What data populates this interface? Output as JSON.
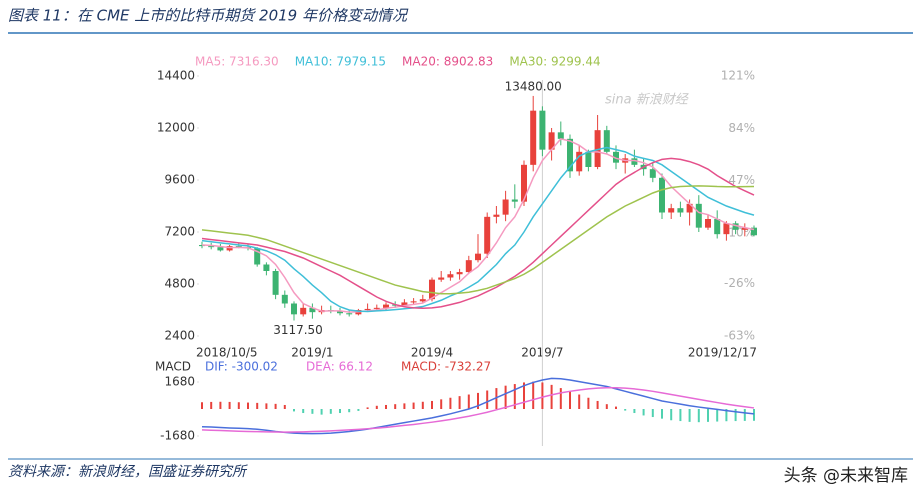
{
  "title": "图表 11：在 CME 上市的比特币期货 2019 年价格变动情况",
  "source": "资料来源：新浪财经，国盛证券研究所",
  "credit": "头条 @未来智库",
  "chart_data": [
    {
      "type": "candlestick",
      "watermark": "sina 新浪财经",
      "categories": [
        "2018/10/5",
        null,
        null,
        null,
        null,
        null,
        null,
        null,
        null,
        null,
        null,
        null,
        "2019/1",
        null,
        null,
        null,
        null,
        null,
        null,
        null,
        null,
        null,
        null,
        null,
        null,
        "2019/4",
        null,
        null,
        null,
        null,
        null,
        null,
        null,
        null,
        null,
        null,
        null,
        "2019/7",
        null,
        null,
        null,
        null,
        null,
        null,
        null,
        null,
        null,
        null,
        null,
        null,
        null,
        null,
        null,
        null,
        null,
        null,
        null,
        null,
        null,
        null,
        "2019/12/17"
      ],
      "open": [
        6600,
        6550,
        6500,
        6350,
        6550,
        6500,
        6450,
        5700,
        5400,
        4300,
        3900,
        3400,
        3700,
        3500,
        3600,
        3550,
        3450,
        3400,
        3600,
        3650,
        3700,
        3850,
        3800,
        3950,
        4000,
        4100,
        5000,
        5100,
        5250,
        5350,
        5900,
        6200,
        7900,
        8000,
        8700,
        8600,
        10300,
        12800,
        11000,
        11800,
        11500,
        10000,
        10900,
        10200,
        11900,
        10900,
        10400,
        10600,
        10300,
        10100,
        9700,
        8100,
        8300,
        8100,
        8500,
        7400,
        7800,
        7100,
        7600,
        7300,
        7400
      ],
      "high": [
        6750,
        6700,
        6650,
        6600,
        6700,
        6650,
        6500,
        5800,
        5500,
        4500,
        4000,
        3900,
        3900,
        3800,
        3800,
        3700,
        3600,
        3650,
        3900,
        3850,
        3950,
        4000,
        4100,
        4150,
        4300,
        5100,
        5400,
        5400,
        5500,
        6100,
        7100,
        8100,
        8400,
        9100,
        9400,
        10500,
        13480,
        13000,
        12000,
        12300,
        11700,
        11200,
        11000,
        12600,
        12100,
        11200,
        10800,
        11000,
        10600,
        10400,
        9900,
        8500,
        8600,
        8700,
        8900,
        8000,
        8200,
        7700,
        7700,
        7600,
        7500
      ],
      "low": [
        6450,
        6400,
        6300,
        6300,
        6450,
        6350,
        5600,
        5200,
        4100,
        3700,
        3117.5,
        3300,
        3200,
        3400,
        3450,
        3350,
        3300,
        3350,
        3550,
        3550,
        3600,
        3700,
        3750,
        3850,
        3900,
        4000,
        4900,
        4950,
        5000,
        5300,
        5800,
        6000,
        7600,
        7700,
        8300,
        8400,
        10000,
        10700,
        10500,
        11200,
        9700,
        9800,
        10000,
        10100,
        10800,
        10100,
        9900,
        10200,
        9800,
        9500,
        7800,
        7800,
        7900,
        7500,
        7200,
        7300,
        6900,
        6800,
        7100,
        7000,
        7000
      ],
      "close": [
        6550,
        6500,
        6350,
        6550,
        6500,
        6450,
        5700,
        5400,
        4300,
        3900,
        3400,
        3700,
        3500,
        3600,
        3550,
        3450,
        3400,
        3600,
        3650,
        3700,
        3850,
        3800,
        3950,
        4000,
        4100,
        5000,
        5100,
        5250,
        5350,
        5900,
        6200,
        7900,
        8000,
        8700,
        8600,
        10300,
        12800,
        11000,
        11800,
        11500,
        10000,
        10900,
        10200,
        11900,
        10900,
        10400,
        10600,
        10300,
        10100,
        9700,
        8100,
        8300,
        8100,
        8500,
        7400,
        7800,
        7100,
        7600,
        7300,
        7400,
        7050
      ],
      "up_color": "#e8413b",
      "down_color": "#3cb371",
      "high_label": "13480.00",
      "low_label": "3117.50",
      "series": [
        {
          "name": "MA5: 7316.30",
          "color": "#f59ac0",
          "values": [
            6600,
            6580,
            6530,
            6480,
            6490,
            6470,
            6300,
            6100,
            5700,
            5100,
            4400,
            3900,
            3700,
            3550,
            3560,
            3560,
            3500,
            3520,
            3560,
            3600,
            3680,
            3730,
            3800,
            3860,
            3920,
            4150,
            4400,
            4650,
            4900,
            5300,
            5600,
            6100,
            6700,
            7400,
            7900,
            8700,
            9700,
            10500,
            11000,
            11500,
            11400,
            11200,
            10900,
            10900,
            10800,
            10600,
            10500,
            10500,
            10400,
            10200,
            9800,
            9300,
            8900,
            8500,
            8100,
            8000,
            7800,
            7600,
            7500,
            7400,
            7316.3
          ]
        },
        {
          "name": "MA10: 7979.15",
          "color": "#3fbfd8",
          "values": [
            6800,
            6750,
            6700,
            6650,
            6600,
            6560,
            6450,
            6330,
            6150,
            5900,
            5500,
            5150,
            4750,
            4400,
            4000,
            3750,
            3600,
            3550,
            3530,
            3560,
            3580,
            3620,
            3660,
            3700,
            3760,
            3900,
            4050,
            4250,
            4420,
            4650,
            4900,
            5300,
            5700,
            6200,
            6600,
            7200,
            7900,
            8500,
            9100,
            9700,
            10200,
            10700,
            10900,
            11000,
            11100,
            11000,
            10900,
            10700,
            10600,
            10500,
            10300,
            10000,
            9700,
            9400,
            9100,
            8800,
            8600,
            8400,
            8250,
            8100,
            7979.15
          ]
        },
        {
          "name": "MA20: 8902.83",
          "color": "#e4508a",
          "values": [
            6900,
            6850,
            6800,
            6750,
            6700,
            6650,
            6600,
            6500,
            6400,
            6300,
            6150,
            6000,
            5800,
            5600,
            5400,
            5200,
            4950,
            4700,
            4450,
            4200,
            4000,
            3850,
            3750,
            3700,
            3680,
            3700,
            3750,
            3850,
            3950,
            4100,
            4250,
            4450,
            4650,
            4900,
            5150,
            5450,
            5800,
            6200,
            6600,
            7000,
            7400,
            7800,
            8200,
            8600,
            9000,
            9400,
            9700,
            9950,
            10200,
            10400,
            10550,
            10600,
            10550,
            10450,
            10300,
            10100,
            9800,
            9550,
            9300,
            9100,
            8902.83
          ]
        },
        {
          "name": "MA30: 9299.44",
          "color": "#9fc34e",
          "values": [
            7300,
            7250,
            7200,
            7150,
            7100,
            7050,
            6950,
            6850,
            6700,
            6550,
            6400,
            6250,
            6100,
            5950,
            5800,
            5650,
            5500,
            5350,
            5200,
            5050,
            4900,
            4750,
            4650,
            4550,
            4450,
            4400,
            4350,
            4350,
            4380,
            4420,
            4500,
            4600,
            4750,
            4900,
            5050,
            5250,
            5500,
            5800,
            6100,
            6400,
            6700,
            7000,
            7300,
            7600,
            7900,
            8150,
            8400,
            8600,
            8800,
            9000,
            9150,
            9250,
            9300,
            9320,
            9330,
            9320,
            9300,
            9290,
            9290,
            9295,
            9299.44
          ]
        }
      ],
      "ylim": [
        2400,
        14400
      ],
      "yticks": [
        2400,
        4800,
        7200,
        9600,
        12000,
        14400
      ],
      "y2lim": [
        -63,
        121
      ],
      "y2ticks": [
        {
          "value": -63,
          "label": "-63%"
        },
        {
          "value": -26,
          "label": "-26%"
        },
        {
          "value": 10,
          "label": "10%"
        },
        {
          "value": 47,
          "label": "47%"
        },
        {
          "value": 84,
          "label": "84%"
        },
        {
          "value": 121,
          "label": "121%"
        }
      ]
    },
    {
      "type": "macd",
      "title": "MACD",
      "ylim": [
        -2300,
        2300
      ],
      "yticks": [
        -1680,
        1680
      ],
      "up_color": "#e8413b",
      "down_color": "#4fd1b0",
      "series": [
        {
          "name": "DIF: -300.02",
          "color": "#4a6fdc",
          "values": [
            -1100,
            -1120,
            -1150,
            -1180,
            -1200,
            -1220,
            -1260,
            -1320,
            -1400,
            -1450,
            -1500,
            -1520,
            -1530,
            -1520,
            -1500,
            -1450,
            -1400,
            -1330,
            -1250,
            -1150,
            -1050,
            -950,
            -850,
            -750,
            -650,
            -550,
            -430,
            -300,
            -150,
            0,
            200,
            450,
            700,
            950,
            1200,
            1450,
            1650,
            1800,
            1900,
            1880,
            1800,
            1700,
            1600,
            1500,
            1400,
            1250,
            1100,
            950,
            800,
            650,
            500,
            400,
            300,
            200,
            120,
            50,
            -20,
            -100,
            -170,
            -240,
            -300.02
          ]
        },
        {
          "name": "DEA: 66.12",
          "color": "#e66ad6",
          "values": [
            -1300,
            -1320,
            -1340,
            -1360,
            -1380,
            -1400,
            -1410,
            -1420,
            -1430,
            -1440,
            -1430,
            -1420,
            -1400,
            -1380,
            -1360,
            -1330,
            -1300,
            -1270,
            -1230,
            -1190,
            -1140,
            -1080,
            -1020,
            -960,
            -890,
            -820,
            -740,
            -650,
            -550,
            -450,
            -330,
            -200,
            -50,
            100,
            260,
            420,
            580,
            740,
            880,
            1000,
            1100,
            1180,
            1250,
            1300,
            1320,
            1320,
            1300,
            1250,
            1180,
            1100,
            1000,
            900,
            800,
            700,
            600,
            500,
            400,
            300,
            220,
            140,
            66.12
          ]
        },
        {
          "name": "MACD: -732.27",
          "color": "#d9403a",
          "values": [
            420,
            440,
            450,
            440,
            420,
            400,
            380,
            350,
            320,
            250,
            -150,
            -250,
            -300,
            -350,
            -300,
            -250,
            -200,
            -120,
            100,
            200,
            250,
            300,
            350,
            400,
            450,
            500,
            600,
            700,
            800,
            900,
            1000,
            1150,
            1300,
            1450,
            1550,
            1650,
            1700,
            1650,
            1500,
            1300,
            1100,
            900,
            700,
            500,
            300,
            150,
            -100,
            -250,
            -400,
            -500,
            -600,
            -700,
            -750,
            -800,
            -820,
            -800,
            -780,
            -760,
            -750,
            -740,
            -732.27
          ]
        }
      ]
    }
  ]
}
